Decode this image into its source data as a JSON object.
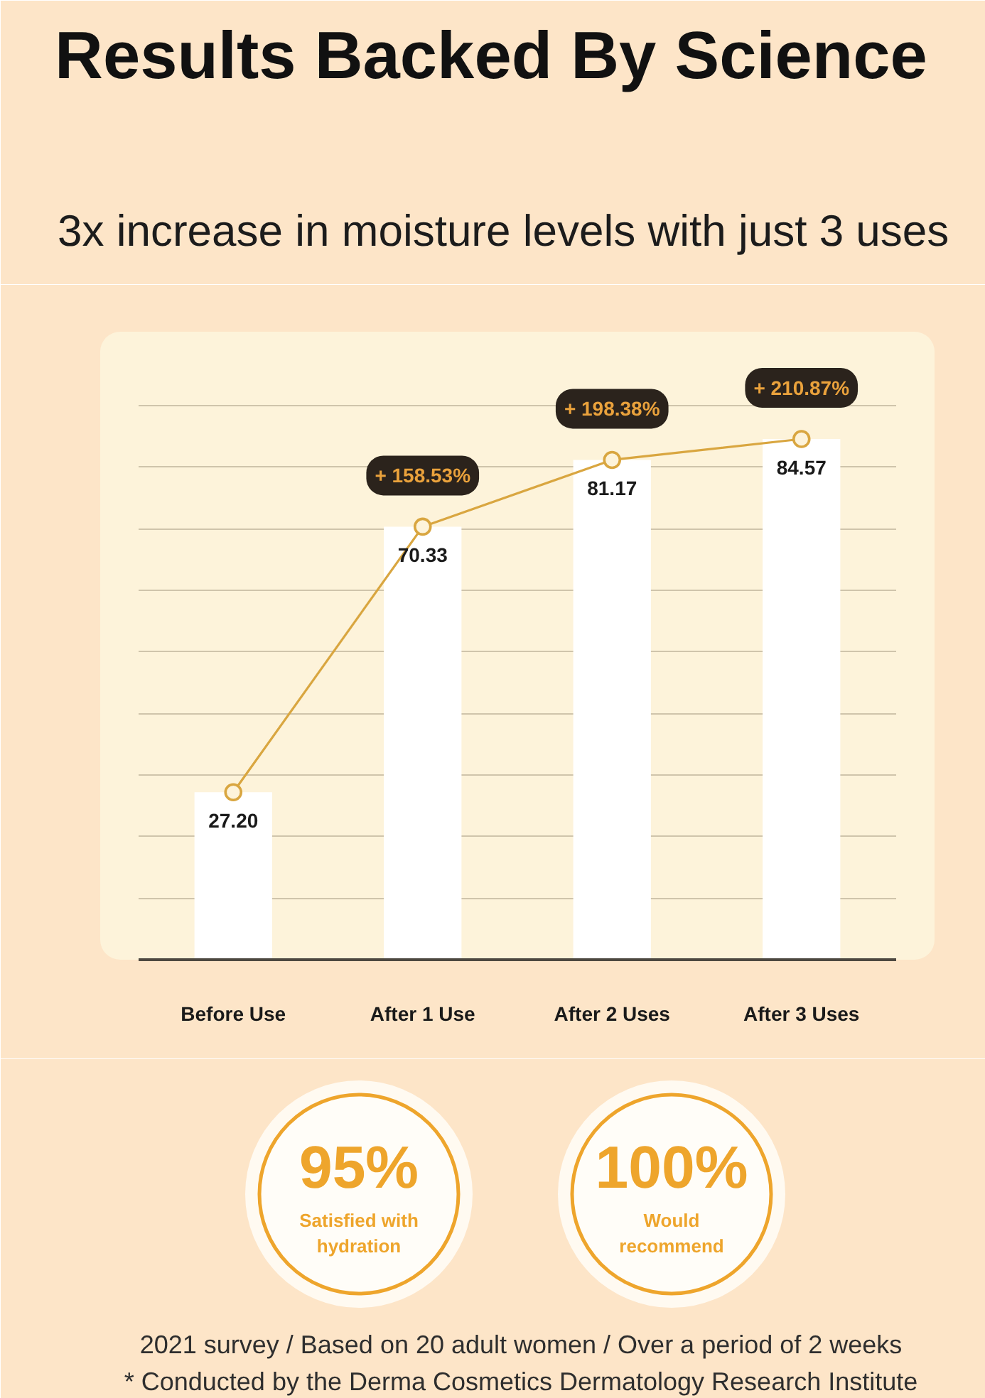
{
  "chart_data": [
    {
      "type": "bar",
      "title": "Results Backed By Science",
      "subtitle": "3x increase in moisture levels with just 3 uses",
      "categories": [
        "Before Use",
        "After 1 Use",
        "After 2 Uses",
        "After 3 Uses"
      ],
      "series": [
        {
          "type": "bar",
          "color": "#ffffff",
          "values": [
            27.2,
            70.33,
            81.17,
            84.57
          ],
          "value_labels": [
            "27.20",
            "70.33",
            "81.17",
            "84.57"
          ]
        },
        {
          "type": "line",
          "color": "#d9a640",
          "values": [
            27.2,
            70.33,
            81.17,
            84.57
          ]
        }
      ],
      "marker": "circle",
      "grid": "y",
      "tick_labels": "x",
      "annotations": [
        {
          "text": "+ 158.53%",
          "x": "After 1 Use",
          "y": 70.33
        },
        {
          "text": "+ 198.38%",
          "x": "After 2 Uses",
          "y": 81.17
        },
        {
          "text": "+ 210.87%",
          "x": "After 3 Uses",
          "y": 84.57
        }
      ]
    },
    {
      "type": "other",
      "categories": [
        "Satisfied with hydration",
        "Would recommend"
      ],
      "value_labels": [
        "95%",
        "100%"
      ],
      "annotations": [
        "2021 survey / Based on 20 adult women / Over a period of 2 weeks",
        "* Conducted by the Derma Cosmetics Dermatology Research Institute"
      ]
    }
  ]
}
